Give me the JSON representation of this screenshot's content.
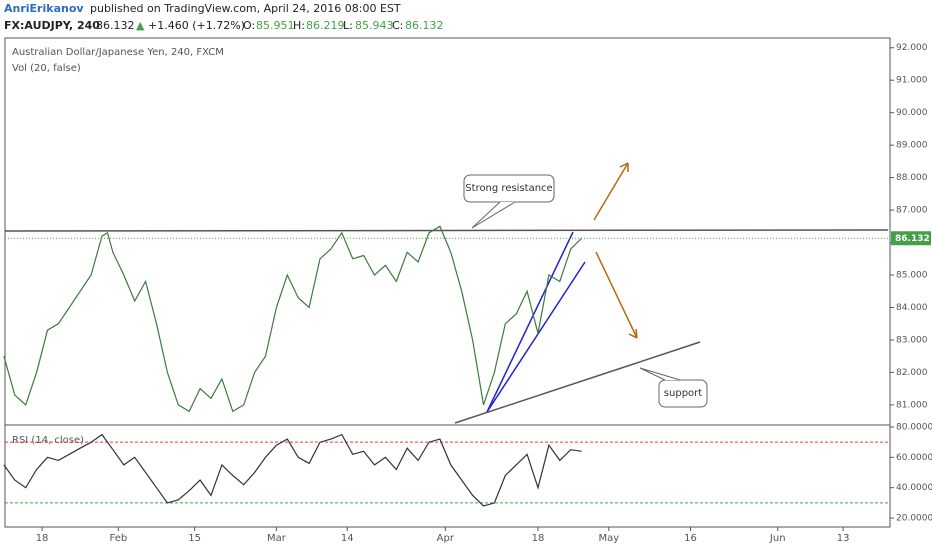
{
  "header": {
    "author": "AnriErikanov",
    "published": "published on TradingView.com, April 24, 2016 08:00 EST",
    "symbol": "FX:AUDJPY, 240",
    "price": "86.132",
    "arrow": "▲",
    "change": "+1.460 (+1.72%)",
    "o_label": "O:",
    "o": "85.951",
    "h_label": "H:",
    "h": "86.219",
    "l_label": "L:",
    "l": "85.943",
    "c_label": "C:",
    "c": "86.132"
  },
  "chart_data": [
    {
      "type": "line",
      "title": "Australian Dollar/Japanese Yen, 240, FXCM",
      "subtitle": "Vol (20, false)",
      "x": [
        11,
        13,
        15,
        17,
        19,
        21,
        23,
        25,
        27,
        29,
        30,
        31,
        33,
        35,
        37,
        39,
        41,
        43,
        45,
        47,
        49,
        51,
        53,
        55,
        57,
        59,
        61,
        63,
        65,
        67,
        69,
        71,
        73,
        75,
        77,
        79,
        81,
        83,
        85,
        87,
        89,
        91,
        93,
        95,
        97,
        99,
        101,
        103,
        105,
        107,
        109,
        111,
        113,
        115,
        117
      ],
      "series": [
        {
          "name": "AUDJPY",
          "color": "#3d7a3d",
          "values": [
            82.5,
            81.3,
            81.0,
            82.0,
            83.3,
            83.5,
            84.0,
            84.5,
            85.0,
            86.2,
            86.3,
            85.7,
            85.0,
            84.2,
            84.8,
            83.5,
            82.0,
            81.0,
            80.8,
            81.5,
            81.2,
            81.8,
            80.8,
            81.0,
            82.0,
            82.5,
            84.0,
            85.0,
            84.3,
            84.0,
            85.5,
            85.8,
            86.3,
            85.5,
            85.6,
            85.0,
            85.3,
            84.8,
            85.7,
            85.4,
            86.3,
            86.5,
            85.7,
            84.5,
            83.0,
            81.0,
            82.0,
            83.5,
            83.8,
            84.5,
            83.2,
            85.0,
            84.8,
            85.8,
            86.132
          ]
        }
      ],
      "last_price": {
        "value": 86.132,
        "label": "86.132"
      },
      "annotations": [
        "Strong resistance",
        "support"
      ],
      "xlim": [
        11.2,
        173.6
      ],
      "ylim": [
        80.38,
        92.3
      ],
      "yticks": [
        {
          "value": 81,
          "label": "81.000"
        },
        {
          "value": 82,
          "label": "82.000"
        },
        {
          "value": 83,
          "label": "83.000"
        },
        {
          "value": 84,
          "label": "84.000"
        },
        {
          "value": 85,
          "label": "85.000"
        },
        {
          "value": 86,
          "label": "86.000"
        },
        {
          "value": 87,
          "label": "87.000"
        },
        {
          "value": 88,
          "label": "88.000"
        },
        {
          "value": 89,
          "label": "89.000"
        },
        {
          "value": 90,
          "label": "90.000"
        },
        {
          "value": 91,
          "label": "91.000"
        },
        {
          "value": 92,
          "label": "92.000"
        }
      ]
    },
    {
      "type": "line",
      "title": "RSI (14, close)",
      "x": [
        11,
        13,
        15,
        17,
        19,
        21,
        23,
        25,
        27,
        29,
        31,
        33,
        35,
        37,
        39,
        41,
        43,
        45,
        47,
        49,
        51,
        53,
        55,
        57,
        59,
        61,
        63,
        65,
        67,
        69,
        71,
        73,
        75,
        77,
        79,
        81,
        83,
        85,
        87,
        89,
        91,
        93,
        95,
        97,
        99,
        101,
        103,
        105,
        107,
        109,
        111,
        113,
        115,
        117
      ],
      "series": [
        {
          "name": "RSI",
          "color": "#333333",
          "values": [
            55,
            45,
            40,
            52,
            60,
            58,
            62,
            66,
            70,
            75,
            65,
            55,
            60,
            50,
            40,
            30,
            32,
            38,
            45,
            35,
            55,
            48,
            42,
            50,
            60,
            68,
            72,
            60,
            56,
            70,
            72,
            75,
            62,
            64,
            55,
            60,
            52,
            66,
            58,
            70,
            72,
            55,
            45,
            35,
            28,
            30,
            48,
            55,
            62,
            40,
            68,
            58,
            65,
            64
          ]
        }
      ],
      "levels": [
        {
          "value": 70,
          "color": "#e53935"
        },
        {
          "value": 30,
          "color": "#43a047"
        }
      ],
      "xlim": [
        11.2,
        173.6
      ],
      "ylim": [
        14.1,
        81.3
      ],
      "yticks": [
        {
          "value": 20,
          "label": "20.0000"
        },
        {
          "value": 40,
          "label": "40.0000"
        },
        {
          "value": 60,
          "label": "60.0000"
        },
        {
          "value": 80,
          "label": "80.0000"
        }
      ],
      "xticks": [
        {
          "value": 18,
          "label": "18"
        },
        {
          "value": 32,
          "label": "Feb"
        },
        {
          "value": 46,
          "label": "15"
        },
        {
          "value": 61,
          "label": "Mar"
        },
        {
          "value": 74,
          "label": "14"
        },
        {
          "value": 92,
          "label": "Apr"
        },
        {
          "value": 109,
          "label": "18"
        },
        {
          "value": 122,
          "label": "May"
        },
        {
          "value": 137,
          "label": "16"
        },
        {
          "value": 153,
          "label": "Jun"
        },
        {
          "value": 165,
          "label": "13"
        }
      ]
    }
  ]
}
